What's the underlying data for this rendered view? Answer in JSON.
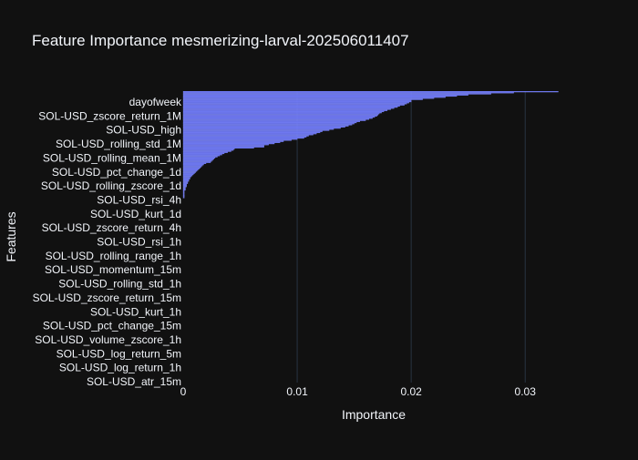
{
  "chart_data": {
    "type": "bar",
    "orientation": "horizontal",
    "title": "Feature Importance mesmerizing-larval-202506011407",
    "xlabel": "Importance",
    "ylabel": "Features",
    "xlim": [
      0,
      0.0335
    ],
    "xticks": [
      0,
      0.01,
      0.02,
      0.03
    ],
    "xtick_labels": [
      "0",
      "0.01",
      "0.02",
      "0.03"
    ],
    "grid": true,
    "legend": "none",
    "colors": {
      "background": "#111111",
      "bar": "#636efa",
      "grid": "#283442",
      "text": "#f2f5fa"
    },
    "feature_labels": [
      {
        "label": "dayofweek",
        "rank": 1
      },
      {
        "label": "SOL-USD_zscore_return_1M",
        "rank": 3
      },
      {
        "label": "SOL-USD_high",
        "rank": 5
      },
      {
        "label": "SOL-USD_rolling_std_1M",
        "rank": 7
      },
      {
        "label": "SOL-USD_rolling_mean_1M",
        "rank": 9
      },
      {
        "label": "SOL-USD_pct_change_1d",
        "rank": 11
      },
      {
        "label": "SOL-USD_rolling_zscore_1d",
        "rank": 13
      },
      {
        "label": "SOL-USD_rsi_4h",
        "rank": 15
      },
      {
        "label": "SOL-USD_kurt_1d",
        "rank": 17
      },
      {
        "label": "SOL-USD_zscore_return_4h",
        "rank": 19
      },
      {
        "label": "SOL-USD_rsi_1h",
        "rank": 21
      },
      {
        "label": "SOL-USD_rolling_range_1h",
        "rank": 23
      },
      {
        "label": "SOL-USD_momentum_15m",
        "rank": 25
      },
      {
        "label": "SOL-USD_rolling_std_1h",
        "rank": 27
      },
      {
        "label": "SOL-USD_zscore_return_15m",
        "rank": 29
      },
      {
        "label": "SOL-USD_kurt_1h",
        "rank": 31
      },
      {
        "label": "SOL-USD_pct_change_15m",
        "rank": 33
      },
      {
        "label": "SOL-USD_volume_zscore_1h",
        "rank": 35
      },
      {
        "label": "SOL-USD_log_return_5m",
        "rank": 37
      },
      {
        "label": "SOL-USD_log_return_1h",
        "rank": 39
      },
      {
        "label": "SOL-USD_atr_15m",
        "rank": 41
      }
    ],
    "values": [
      0.0329,
      0.029,
      0.027,
      0.025,
      0.024,
      0.023,
      0.022,
      0.021,
      0.02,
      0.02,
      0.0198,
      0.0196,
      0.0194,
      0.019,
      0.0188,
      0.0185,
      0.0182,
      0.0179,
      0.0176,
      0.0174,
      0.0172,
      0.0171,
      0.017,
      0.0168,
      0.0166,
      0.0163,
      0.016,
      0.0155,
      0.0152,
      0.015,
      0.0148,
      0.0145,
      0.0142,
      0.0138,
      0.0132,
      0.0128,
      0.0122,
      0.012,
      0.0117,
      0.0114,
      0.011,
      0.0108,
      0.0106,
      0.01,
      0.0095,
      0.0088,
      0.0085,
      0.008,
      0.0075,
      0.0071,
      0.0071,
      0.0062,
      0.0045,
      0.0044,
      0.0042,
      0.0039,
      0.0036,
      0.0034,
      0.0032,
      0.003,
      0.0028,
      0.0027,
      0.0026,
      0.0025,
      0.0024,
      0.002,
      0.0018,
      0.0017,
      0.0016,
      0.0015,
      0.0014,
      0.0013,
      0.0012,
      0.0011,
      0.001,
      0.0009,
      0.0008,
      0.0007,
      0.0006,
      0.0006,
      0.0005,
      0.0005,
      0.0004,
      0.0004,
      0.0003,
      0.0003,
      0.0003,
      0.0002,
      0.0002,
      0.0002,
      0.0001,
      0.0001,
      0.0001,
      0.0001,
      0.0001,
      0.0001,
      0.0001,
      0.0,
      0.0,
      0.0,
      0.0,
      0.0,
      0.0,
      0.0,
      0.0,
      0.0,
      0.0,
      0.0,
      0.0,
      0.0,
      0.0,
      0.0,
      0.0,
      0.0,
      0.0,
      0.0,
      0.0,
      0.0,
      0.0,
      0.0,
      0.0,
      0.0,
      0.0,
      0.0,
      0.0,
      0.0,
      0.0,
      0.0,
      0.0,
      0.0,
      0.0,
      0.0,
      0.0,
      0.0,
      0.0,
      0.0,
      0.0,
      0.0,
      0.0,
      0.0,
      0.0,
      0.0,
      0.0,
      0.0,
      0.0,
      0.0,
      0.0,
      0.0,
      0.0,
      0.0,
      0.0,
      0.0,
      0.0,
      0.0,
      0.0,
      0.0,
      0.0,
      0.0,
      0.0,
      0.0,
      0.0,
      0.0,
      0.0,
      0.0,
      0.0,
      0.0,
      0.0,
      0.0,
      0.0,
      0.0,
      0.0,
      0.0,
      0.0,
      0.0,
      0.0,
      0.0,
      0.0,
      0.0,
      0.0,
      0.0,
      0.0,
      0.0,
      0.0,
      0.0,
      0.0,
      0.0,
      0.0,
      0.0,
      0.0,
      0.0,
      0.0,
      0.0,
      0.0,
      0.0,
      0.0,
      0.0,
      0.0,
      0.0,
      0.0,
      0.0,
      0.0,
      0.0,
      0.0,
      0.0,
      0.0,
      0.0,
      0.0,
      0.0,
      0.0,
      0.0,
      0.0,
      0.0,
      0.0,
      0.0,
      0.0,
      0.0,
      0.0,
      0.0,
      0.0,
      0.0,
      0.0,
      0.0,
      0.0,
      0.0,
      0.0,
      0.0,
      0.0,
      0.0,
      0.0,
      0.0,
      0.0,
      0.0,
      0.0,
      0.0,
      0.0,
      0.0,
      0.0,
      0.0,
      0.0,
      0.0,
      0.0,
      0.0,
      0.0,
      0.0,
      0.0,
      0.0,
      0.0,
      0.0,
      0.0,
      0.0,
      0.0,
      0.0,
      0.0,
      0.0,
      0.0,
      0.0,
      0.0,
      0.0,
      0.0,
      0.0,
      0.0,
      0.0,
      0.0,
      0.0
    ]
  }
}
